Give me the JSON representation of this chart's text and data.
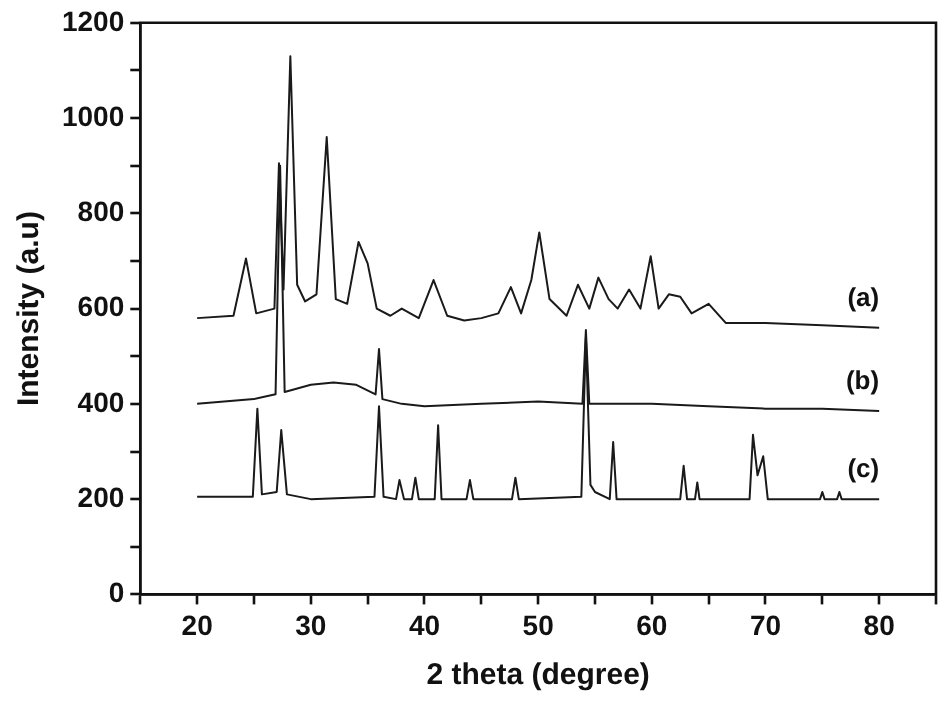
{
  "chart_data": {
    "type": "line",
    "xlabel": "2 theta (degree)",
    "ylabel": "Intensity (a.u)",
    "xlim": [
      15,
      85
    ],
    "ylim": [
      0,
      1200
    ],
    "xticks": [
      {
        "value": 15,
        "label": null
      },
      20,
      {
        "value": 25,
        "label": null
      },
      30,
      {
        "value": 35,
        "label": null
      },
      40,
      {
        "value": 45,
        "label": null
      },
      50,
      {
        "value": 55,
        "label": null
      },
      60,
      {
        "value": 65,
        "label": null
      },
      70,
      {
        "value": 75,
        "label": null
      },
      80,
      {
        "value": 85,
        "label": null
      }
    ],
    "yticks": [
      0,
      {
        "value": 100,
        "label": null
      },
      200,
      {
        "value": 300,
        "label": null
      },
      400,
      {
        "value": 500,
        "label": null
      },
      600,
      {
        "value": 700,
        "label": null
      },
      800,
      {
        "value": 900,
        "label": null
      },
      1000,
      {
        "value": 1100,
        "label": null
      },
      1200
    ],
    "grid": false,
    "legend": false,
    "marker": "none",
    "line_style": "solid",
    "series": [
      {
        "name": "(a)",
        "color": "#1a1a1a",
        "x": [
          20,
          23.2,
          24.3,
          25.2,
          26.8,
          27.2,
          27.6,
          28.2,
          28.8,
          29.5,
          30.5,
          31.4,
          32.2,
          33.2,
          34.2,
          35.0,
          35.8,
          37,
          38,
          39.5,
          40.8,
          42,
          43.5,
          45,
          46.5,
          47.6,
          48.5,
          49.4,
          50.1,
          51,
          52.5,
          53.5,
          54.5,
          55.3,
          56.2,
          57,
          58,
          59,
          59.9,
          60.6,
          61.5,
          62.5,
          63.5,
          65,
          66.5,
          70,
          75,
          80
        ],
        "values": [
          580,
          585,
          705,
          590,
          600,
          905,
          640,
          1130,
          650,
          615,
          630,
          960,
          620,
          610,
          740,
          695,
          600,
          585,
          600,
          580,
          660,
          585,
          575,
          580,
          590,
          645,
          590,
          660,
          760,
          620,
          585,
          650,
          600,
          665,
          620,
          600,
          640,
          600,
          710,
          600,
          630,
          625,
          590,
          610,
          570,
          570,
          565,
          560
        ]
      },
      {
        "name": "(b)",
        "color": "#1a1a1a",
        "x": [
          20,
          25,
          26.9,
          27.3,
          27.7,
          30,
          32,
          34,
          35.7,
          36.0,
          36.3,
          38,
          40,
          45,
          50,
          53.9,
          54.2,
          54.5,
          60,
          65,
          70,
          75,
          80
        ],
        "values": [
          400,
          410,
          420,
          900,
          425,
          440,
          445,
          440,
          420,
          515,
          410,
          400,
          395,
          400,
          405,
          400,
          555,
          400,
          400,
          395,
          390,
          390,
          385
        ]
      },
      {
        "name": "(c)",
        "color": "#1a1a1a",
        "x": [
          20,
          24.9,
          25.3,
          25.7,
          27.0,
          27.4,
          27.9,
          30,
          35.6,
          36.0,
          36.4,
          37.5,
          37.8,
          38.2,
          38.9,
          39.2,
          39.5,
          40.9,
          41.2,
          41.5,
          43.7,
          44,
          44.3,
          47.7,
          48,
          48.3,
          53.8,
          54.2,
          54.6,
          55,
          56.3,
          56.6,
          56.9,
          62.5,
          62.8,
          63.1,
          63.8,
          64,
          64.2,
          68.6,
          68.9,
          69.3,
          69.8,
          70.2,
          74.8,
          75,
          75.2,
          76.3,
          76.5,
          76.7,
          80
        ],
        "values": [
          205,
          205,
          390,
          210,
          215,
          345,
          210,
          200,
          205,
          395,
          205,
          200,
          240,
          200,
          200,
          245,
          200,
          200,
          355,
          200,
          200,
          240,
          200,
          200,
          245,
          200,
          205,
          540,
          230,
          215,
          200,
          320,
          200,
          200,
          270,
          200,
          200,
          235,
          200,
          200,
          335,
          250,
          290,
          200,
          200,
          215,
          200,
          200,
          215,
          200,
          200
        ]
      }
    ]
  }
}
